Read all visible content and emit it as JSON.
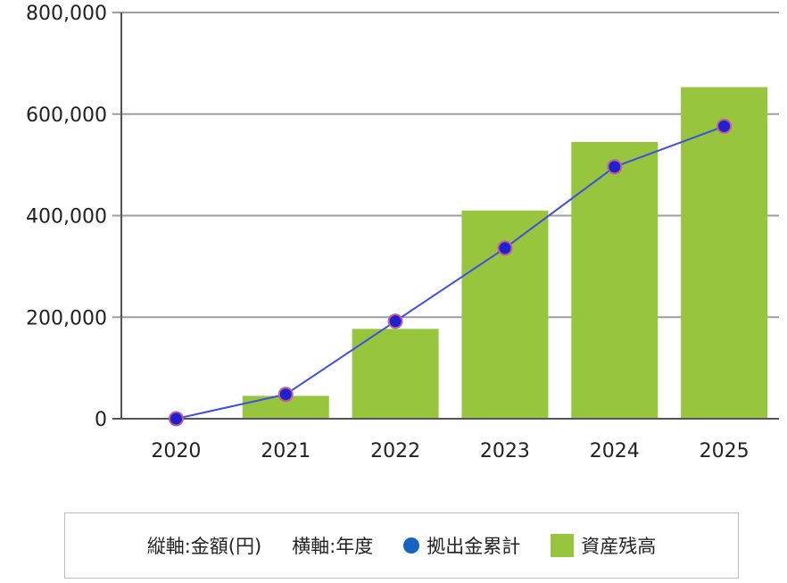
{
  "chart_data": {
    "type": "bar",
    "categories": [
      "2020",
      "2021",
      "2022",
      "2023",
      "2024",
      "2025"
    ],
    "series": [
      {
        "name": "資産残高",
        "kind": "bar",
        "values": [
          0,
          45000,
          177000,
          410000,
          545000,
          653000
        ]
      },
      {
        "name": "拠出金累計",
        "kind": "line",
        "values": [
          0,
          48000,
          192000,
          336000,
          496000,
          576000
        ]
      }
    ],
    "title": "",
    "xlabel": "",
    "ylabel": "",
    "ylim": [
      0,
      800000
    ],
    "yticks": [
      0,
      200000,
      400000,
      600000,
      800000
    ],
    "ytick_labels": [
      "0",
      "200,000",
      "400,000",
      "600,000",
      "800,000"
    ],
    "grid": true,
    "legend_position": "bottom",
    "colors": {
      "bar": "#97c53d",
      "line": "#3f4fe0",
      "marker_fill": "#2020d0",
      "marker_edge": "#c06090",
      "grid": "#9e9e9e",
      "legend_dot": "#1565c0"
    }
  },
  "legend": {
    "axis_note_y": "縦軸:金額(円)",
    "axis_note_x": "横軸:年度",
    "line_label": "拠出金累計",
    "bar_label": "資産残高"
  }
}
